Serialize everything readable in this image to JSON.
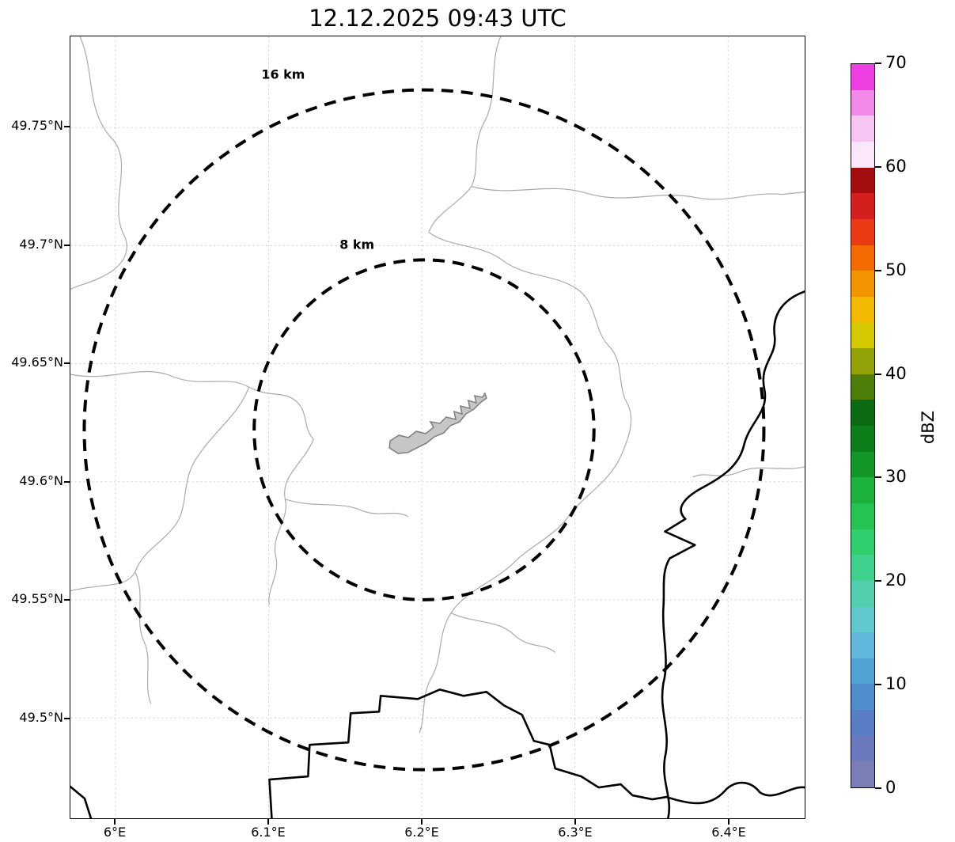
{
  "title": "12.12.2025 09:43 UTC",
  "map": {
    "extent": {
      "lon_min": 5.9706,
      "lon_max": 6.45,
      "lat_min": 49.4575,
      "lat_max": 49.7886
    },
    "x_ticks": [
      {
        "value": 6.0,
        "label": "6°E"
      },
      {
        "value": 6.1,
        "label": "6.1°E"
      },
      {
        "value": 6.2,
        "label": "6.2°E"
      },
      {
        "value": 6.3,
        "label": "6.3°E"
      },
      {
        "value": 6.4,
        "label": "6.4°E"
      }
    ],
    "y_ticks": [
      {
        "value": 49.75,
        "label": "49.75°N"
      },
      {
        "value": 49.7,
        "label": "49.7°N"
      },
      {
        "value": 49.65,
        "label": "49.65°N"
      },
      {
        "value": 49.6,
        "label": "49.6°N"
      },
      {
        "value": 49.55,
        "label": "49.55°N"
      },
      {
        "value": 49.5,
        "label": "49.5°N"
      }
    ],
    "radar_site": {
      "lon": 6.2015,
      "lat": 49.622
    },
    "range_rings": [
      {
        "radius_km": 8,
        "label": "8 km"
      },
      {
        "radius_km": 16,
        "label": "16 km"
      }
    ]
  },
  "colorbar": {
    "label": "dBZ",
    "vmin": 0,
    "vmax": 70,
    "ticks": [
      {
        "value": 0,
        "label": "0"
      },
      {
        "value": 10,
        "label": "10"
      },
      {
        "value": 20,
        "label": "20"
      },
      {
        "value": 30,
        "label": "30"
      },
      {
        "value": 40,
        "label": "40"
      },
      {
        "value": 50,
        "label": "50"
      },
      {
        "value": 60,
        "label": "60"
      },
      {
        "value": 70,
        "label": "70"
      }
    ],
    "colors": [
      "#7b7db5",
      "#6b79bd",
      "#5a7ec6",
      "#4e8ccb",
      "#52a2d5",
      "#62b7dd",
      "#60c8cf",
      "#52ceae",
      "#3fd28f",
      "#2fcf6e",
      "#25c352",
      "#1cb23c",
      "#129627",
      "#0c7e1a",
      "#0a6b12",
      "#4e7d0a",
      "#93a206",
      "#d6c900",
      "#f2ba00",
      "#f29500",
      "#f26a00",
      "#ea3a14",
      "#d41f1f",
      "#a30d0d",
      "#fbe7fb",
      "#f7c4f3",
      "#f38ae9",
      "#ee3fe3"
    ]
  },
  "colors": {
    "grid": "#c9c9c9",
    "admin_boundary": "#aaaaaa",
    "country_border": "#000000",
    "range_ring": "#000000",
    "city_fill": "#c6c6c6"
  },
  "chart_data": {
    "type": "map",
    "title": "12.12.2025 09:43 UTC",
    "x_axis": {
      "tick_labels": [
        "6°E",
        "6.1°E",
        "6.2°E",
        "6.3°E",
        "6.4°E"
      ],
      "range_deg_lon": [
        5.971,
        6.45
      ]
    },
    "y_axis": {
      "tick_labels": [
        "49.5°N",
        "49.55°N",
        "49.6°N",
        "49.65°N",
        "49.7°N",
        "49.75°N"
      ],
      "range_deg_lat": [
        49.458,
        49.789
      ]
    },
    "radar_site": {
      "lon_deg": 6.2,
      "lat_deg": 49.62
    },
    "range_rings_km": [
      8,
      16
    ],
    "range_ring_labels": [
      "8 km",
      "16 km"
    ],
    "colorbar": {
      "label": "dBZ",
      "min": 0,
      "max": 70,
      "ticks": [
        0,
        10,
        20,
        30,
        40,
        50,
        60,
        70
      ]
    },
    "radar_echoes_visible": false,
    "grid": true,
    "legend_position": "right-colorbar"
  }
}
